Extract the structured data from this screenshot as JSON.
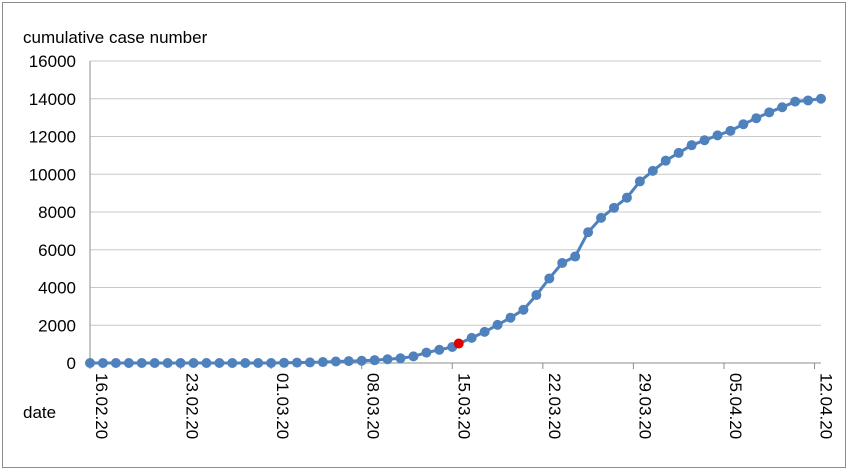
{
  "chart_data": {
    "type": "line",
    "ylabel": "cumulative case number",
    "xlabel": "date",
    "ylim": [
      0,
      16000
    ],
    "yticks": [
      0,
      2000,
      4000,
      6000,
      8000,
      10000,
      12000,
      14000,
      16000
    ],
    "xtick_labels": [
      "16.02.20",
      "23.02.20",
      "01.03.20",
      "08.03.20",
      "15.03.20",
      "22.03.20",
      "29.03.20",
      "05.04.20",
      "12.04.20"
    ],
    "xtick_days": [
      0,
      7,
      14,
      21,
      28,
      35,
      42,
      49,
      56
    ],
    "grid": true,
    "legend": "none",
    "line_color": "#4f81bd",
    "highlight_color": "#e00000",
    "highlight_day": 28.5,
    "series": [
      {
        "days": [
          0,
          1,
          2,
          3,
          4,
          5,
          6,
          7,
          8,
          9,
          10,
          11,
          12,
          13,
          14,
          15,
          16,
          17,
          18,
          19,
          20,
          21,
          22,
          23,
          24,
          25,
          26,
          27,
          28,
          28.5,
          29.5,
          30.5,
          31.5,
          32.5,
          33.5,
          34.5,
          35.5,
          36.5,
          37.5,
          38.5,
          39.5,
          40.5,
          41.5,
          42.5,
          43.5,
          44.5,
          45.5,
          46.5,
          47.5,
          48.5,
          49.5,
          50.5,
          51.5,
          52.5,
          53.5,
          54.5,
          55.5,
          56.5
        ],
        "values": [
          0,
          0,
          0,
          0,
          0,
          0,
          0,
          0,
          0,
          0,
          0,
          0,
          0,
          0,
          0,
          10,
          20,
          30,
          50,
          80,
          100,
          120,
          150,
          200,
          250,
          350,
          550,
          700,
          850,
          1030,
          1330,
          1650,
          2020,
          2400,
          2820,
          3600,
          4480,
          5300,
          5640,
          6930,
          7690,
          8220,
          8760,
          9620,
          10180,
          10720,
          11130,
          11540,
          11800,
          12060,
          12300,
          12650,
          12970,
          13280,
          13550,
          13850,
          13910,
          14000
        ]
      }
    ]
  }
}
